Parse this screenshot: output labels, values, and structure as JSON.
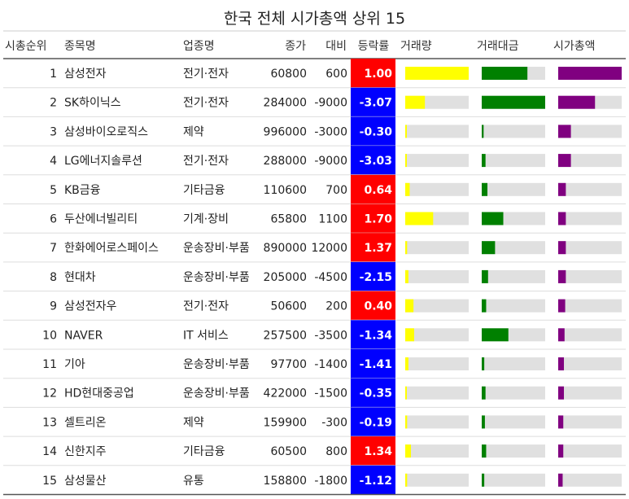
{
  "chart_data": {
    "type": "table",
    "title": "한국 전체 시가총액 상위 15",
    "columns": [
      "시총순위",
      "종목명",
      "업종명",
      "종가",
      "대비",
      "등락률",
      "거래량",
      "거래대금",
      "시가총액"
    ],
    "colors": {
      "up": "#ff0000",
      "down": "#0000ff",
      "volume": "#ffff00",
      "trade_value": "#008000",
      "market_cap": "#800080",
      "bar_background": "#e0e0e0"
    },
    "rows": [
      {
        "rank": "1",
        "name": "삼성전자",
        "sector": "전기·전자",
        "close": "60800",
        "change": "600",
        "pct": "1.00",
        "volume": 1.0,
        "trade_value": 0.72,
        "market_cap": 1.0
      },
      {
        "rank": "2",
        "name": "SK하이닉스",
        "sector": "전기·전자",
        "close": "284000",
        "change": "-9000",
        "pct": "-3.07",
        "volume": 0.31,
        "trade_value": 1.0,
        "market_cap": 0.58
      },
      {
        "rank": "3",
        "name": "삼성바이오로직스",
        "sector": "제약",
        "close": "996000",
        "change": "-3000",
        "pct": "-0.30",
        "volume": 0.01,
        "trade_value": 0.03,
        "market_cap": 0.2
      },
      {
        "rank": "4",
        "name": "LG에너지솔루션",
        "sector": "전기·전자",
        "close": "288000",
        "change": "-9000",
        "pct": "-3.03",
        "volume": 0.02,
        "trade_value": 0.06,
        "market_cap": 0.2
      },
      {
        "rank": "5",
        "name": "KB금융",
        "sector": "기타금융",
        "close": "110600",
        "change": "700",
        "pct": "0.64",
        "volume": 0.07,
        "trade_value": 0.09,
        "market_cap": 0.12
      },
      {
        "rank": "6",
        "name": "두산에너빌리티",
        "sector": "기계·장비",
        "close": "65800",
        "change": "1100",
        "pct": "1.70",
        "volume": 0.44,
        "trade_value": 0.34,
        "market_cap": 0.12
      },
      {
        "rank": "7",
        "name": "한화에어로스페이스",
        "sector": "운송장비·부품",
        "close": "890000",
        "change": "12000",
        "pct": "1.37",
        "volume": 0.03,
        "trade_value": 0.21,
        "market_cap": 0.12
      },
      {
        "rank": "8",
        "name": "현대차",
        "sector": "운송장비·부품",
        "close": "205000",
        "change": "-4500",
        "pct": "-2.15",
        "volume": 0.05,
        "trade_value": 0.1,
        "market_cap": 0.12
      },
      {
        "rank": "9",
        "name": "삼성전자우",
        "sector": "전기·전자",
        "close": "50600",
        "change": "200",
        "pct": "0.40",
        "volume": 0.13,
        "trade_value": 0.07,
        "market_cap": 0.11
      },
      {
        "rank": "10",
        "name": "NAVER",
        "sector": "IT 서비스",
        "close": "257500",
        "change": "-3500",
        "pct": "-1.34",
        "volume": 0.14,
        "trade_value": 0.42,
        "market_cap": 0.1
      },
      {
        "rank": "11",
        "name": "기아",
        "sector": "운송장비·부품",
        "close": "97700",
        "change": "-1400",
        "pct": "-1.41",
        "volume": 0.05,
        "trade_value": 0.04,
        "market_cap": 0.09
      },
      {
        "rank": "12",
        "name": "HD현대중공업",
        "sector": "운송장비·부품",
        "close": "422000",
        "change": "-1500",
        "pct": "-0.35",
        "volume": 0.02,
        "trade_value": 0.06,
        "market_cap": 0.09
      },
      {
        "rank": "13",
        "name": "셀트리온",
        "sector": "제약",
        "close": "159900",
        "change": "-300",
        "pct": "-0.19",
        "volume": 0.03,
        "trade_value": 0.05,
        "market_cap": 0.08
      },
      {
        "rank": "14",
        "name": "신한지주",
        "sector": "기타금융",
        "close": "60500",
        "change": "800",
        "pct": "1.34",
        "volume": 0.09,
        "trade_value": 0.07,
        "market_cap": 0.08
      },
      {
        "rank": "15",
        "name": "삼성물산",
        "sector": "유통",
        "close": "158800",
        "change": "-1800",
        "pct": "-1.12",
        "volume": 0.03,
        "trade_value": 0.04,
        "market_cap": 0.07
      }
    ]
  }
}
